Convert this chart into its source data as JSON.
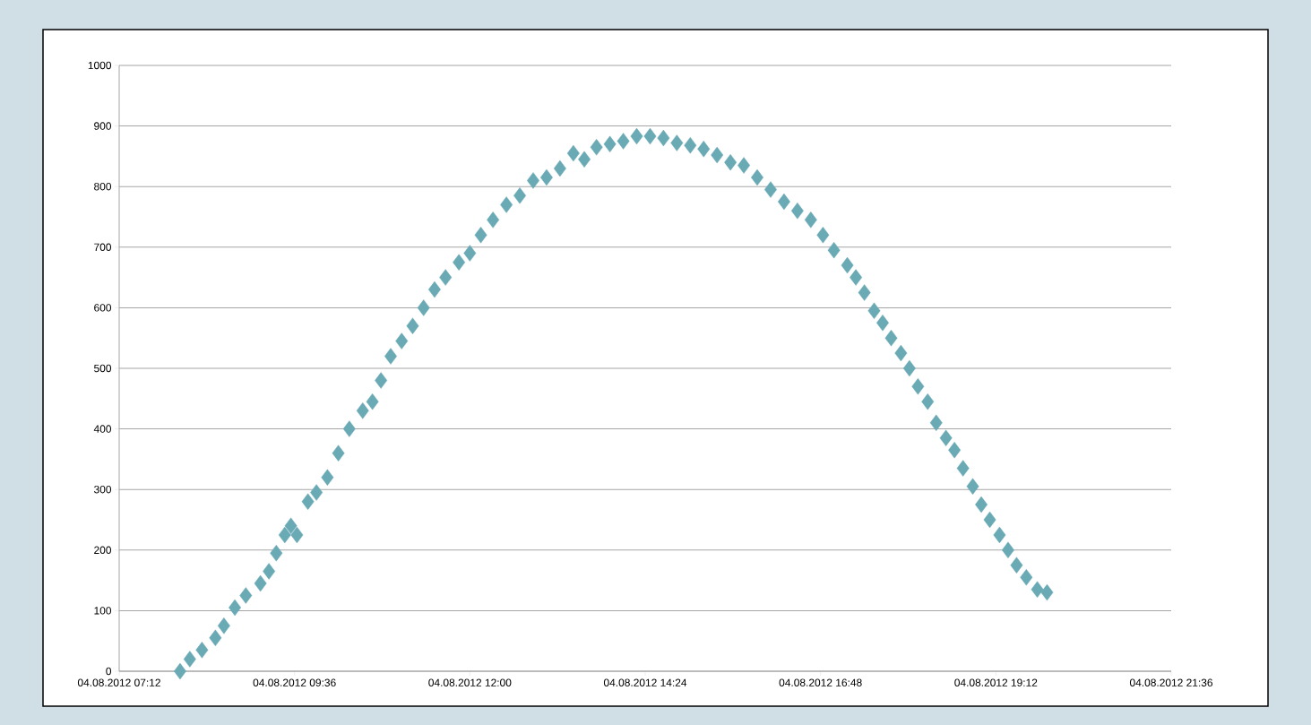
{
  "chart_data": {
    "type": "scatter",
    "marker": "diamond",
    "grid": "y",
    "color": "#6aaab5",
    "x": [
      "2012-08-04T08:02",
      "2012-08-04T08:10",
      "2012-08-04T08:20",
      "2012-08-04T08:31",
      "2012-08-04T08:38",
      "2012-08-04T08:47",
      "2012-08-04T08:56",
      "2012-08-04T09:08",
      "2012-08-04T09:15",
      "2012-08-04T09:21",
      "2012-08-04T09:28",
      "2012-08-04T09:33",
      "2012-08-04T09:38",
      "2012-08-04T09:47",
      "2012-08-04T09:54",
      "2012-08-04T10:03",
      "2012-08-04T10:12",
      "2012-08-04T10:21",
      "2012-08-04T10:32",
      "2012-08-04T10:40",
      "2012-08-04T10:47",
      "2012-08-04T10:55",
      "2012-08-04T11:04",
      "2012-08-04T11:13",
      "2012-08-04T11:22",
      "2012-08-04T11:31",
      "2012-08-04T11:40",
      "2012-08-04T11:51",
      "2012-08-04T12:00",
      "2012-08-04T12:09",
      "2012-08-04T12:19",
      "2012-08-04T12:30",
      "2012-08-04T12:41",
      "2012-08-04T12:52",
      "2012-08-04T13:03",
      "2012-08-04T13:14",
      "2012-08-04T13:25",
      "2012-08-04T13:34",
      "2012-08-04T13:44",
      "2012-08-04T13:55",
      "2012-08-04T14:06",
      "2012-08-04T14:17",
      "2012-08-04T14:28",
      "2012-08-04T14:39",
      "2012-08-04T14:50",
      "2012-08-04T15:01",
      "2012-08-04T15:12",
      "2012-08-04T15:23",
      "2012-08-04T15:34",
      "2012-08-04T15:45",
      "2012-08-04T15:56",
      "2012-08-04T16:07",
      "2012-08-04T16:18",
      "2012-08-04T16:29",
      "2012-08-04T16:40",
      "2012-08-04T16:50",
      "2012-08-04T16:59",
      "2012-08-04T17:10",
      "2012-08-04T17:17",
      "2012-08-04T17:24",
      "2012-08-04T17:32",
      "2012-08-04T17:39",
      "2012-08-04T17:46",
      "2012-08-04T17:54",
      "2012-08-04T18:01",
      "2012-08-04T18:08",
      "2012-08-04T18:16",
      "2012-08-04T18:23",
      "2012-08-04T18:31",
      "2012-08-04T18:38",
      "2012-08-04T18:45",
      "2012-08-04T18:53",
      "2012-08-04T19:00",
      "2012-08-04T19:07",
      "2012-08-04T19:15",
      "2012-08-04T19:22",
      "2012-08-04T19:29",
      "2012-08-04T19:37",
      "2012-08-04T19:46",
      "2012-08-04T19:54"
    ],
    "values": [
      0,
      20,
      35,
      55,
      75,
      105,
      125,
      145,
      165,
      195,
      225,
      240,
      225,
      280,
      295,
      320,
      360,
      400,
      430,
      445,
      480,
      520,
      545,
      570,
      600,
      630,
      650,
      675,
      690,
      720,
      745,
      770,
      785,
      810,
      815,
      830,
      855,
      845,
      865,
      870,
      875,
      883,
      883,
      880,
      872,
      868,
      862,
      852,
      840,
      835,
      815,
      795,
      775,
      760,
      745,
      720,
      695,
      670,
      650,
      625,
      595,
      575,
      550,
      525,
      500,
      470,
      445,
      410,
      385,
      365,
      335,
      305,
      275,
      250,
      225,
      200,
      175,
      155,
      135,
      130
    ],
    "xlim": [
      "2012-08-04T07:12",
      "2012-08-04T21:36"
    ],
    "xticks": [
      {
        "value": "2012-08-04T07:12",
        "label": "04.08.2012 07:12"
      },
      {
        "value": "2012-08-04T09:36",
        "label": "04.08.2012 09:36"
      },
      {
        "value": "2012-08-04T12:00",
        "label": "04.08.2012 12:00"
      },
      {
        "value": "2012-08-04T14:24",
        "label": "04.08.2012 14:24"
      },
      {
        "value": "2012-08-04T16:48",
        "label": "04.08.2012 16:48"
      },
      {
        "value": "2012-08-04T19:12",
        "label": "04.08.2012 19:12"
      },
      {
        "value": "2012-08-04T21:36",
        "label": "04.08.2012 21:36"
      }
    ],
    "ylim": [
      0,
      1000
    ],
    "yticks": [
      0,
      100,
      200,
      300,
      400,
      500,
      600,
      700,
      800,
      900,
      1000
    ]
  }
}
